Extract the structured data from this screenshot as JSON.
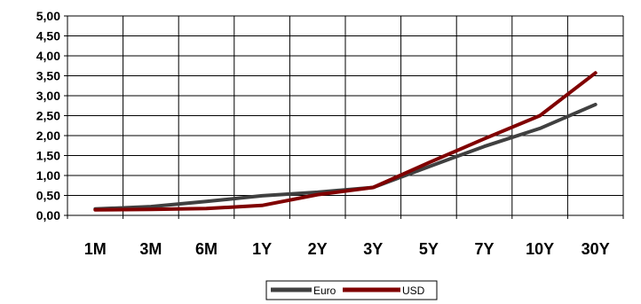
{
  "chart_data": {
    "type": "line",
    "categories": [
      "1M",
      "3M",
      "6M",
      "1Y",
      "2Y",
      "3Y",
      "5Y",
      "7Y",
      "10Y",
      "30Y"
    ],
    "ylim": [
      0,
      5
    ],
    "ytick_labels": [
      "0,00",
      "0,50",
      "1,00",
      "1,50",
      "2,00",
      "2,50",
      "3,00",
      "3,50",
      "4,00",
      "4,50",
      "5,00"
    ],
    "grid": true,
    "legend_position": "bottom",
    "series": [
      {
        "name": "Euro",
        "color": "#404040",
        "values": [
          0.16,
          0.22,
          0.35,
          0.49,
          0.58,
          0.7,
          1.22,
          1.73,
          2.18,
          2.78
        ]
      },
      {
        "name": "USD",
        "color": "#800000",
        "values": [
          0.14,
          0.15,
          0.17,
          0.25,
          0.52,
          0.7,
          1.32,
          1.92,
          2.5,
          3.57
        ]
      }
    ]
  }
}
